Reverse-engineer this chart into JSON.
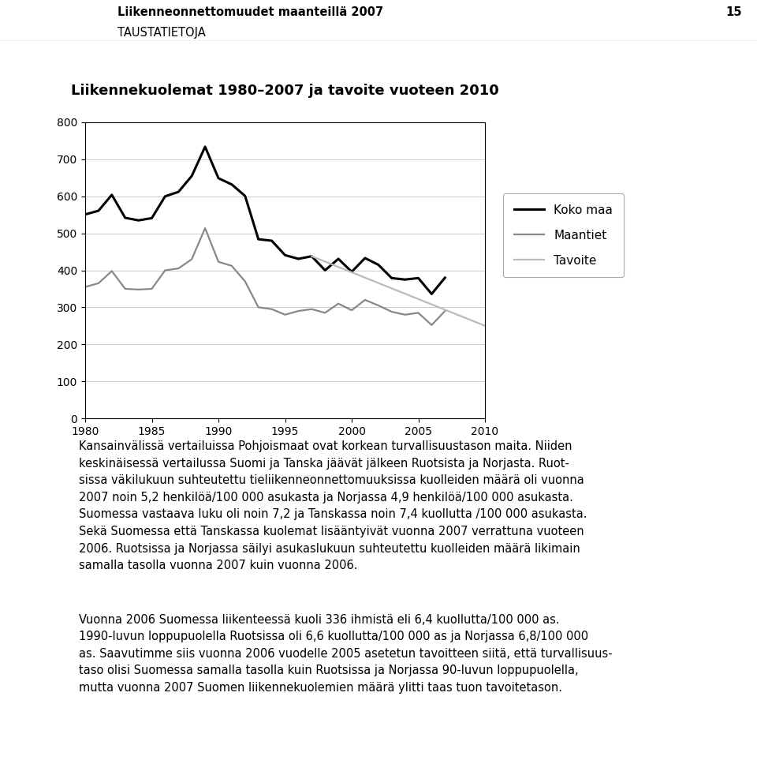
{
  "title": "Liikennekuolemat 1980–2007 ja tavoite vuoteen 2010",
  "header_title": "Liikenneonnettomuudet maanteillä 2007",
  "header_subtitle": "TAUSTATIETOJA",
  "page_number": "15",
  "koko_maa": {
    "years": [
      1980,
      1981,
      1982,
      1983,
      1984,
      1985,
      1986,
      1987,
      1988,
      1989,
      1990,
      1991,
      1992,
      1993,
      1994,
      1995,
      1996,
      1997,
      1998,
      1999,
      2000,
      2001,
      2002,
      2003,
      2004,
      2005,
      2006,
      2007
    ],
    "values": [
      551,
      561,
      604,
      542,
      535,
      541,
      600,
      612,
      655,
      734,
      649,
      632,
      601,
      484,
      480,
      441,
      431,
      438,
      400,
      431,
      396,
      433,
      415,
      379,
      375,
      379,
      336,
      380
    ],
    "color": "#000000",
    "linewidth": 2.2,
    "label": "Koko maa"
  },
  "maantiet": {
    "years": [
      1980,
      1981,
      1982,
      1983,
      1984,
      1985,
      1986,
      1987,
      1988,
      1989,
      1990,
      1991,
      1992,
      1993,
      1994,
      1995,
      1996,
      1997,
      1998,
      1999,
      2000,
      2001,
      2002,
      2003,
      2004,
      2005,
      2006,
      2007
    ],
    "values": [
      355,
      365,
      398,
      350,
      348,
      350,
      400,
      405,
      430,
      514,
      423,
      412,
      370,
      300,
      295,
      280,
      290,
      295,
      285,
      310,
      292,
      320,
      305,
      288,
      280,
      285,
      252,
      290
    ],
    "color": "#888888",
    "linewidth": 1.6,
    "label": "Maantiet"
  },
  "tavoite": {
    "years": [
      1997,
      2010
    ],
    "values": [
      438,
      250
    ],
    "color": "#bbbbbb",
    "linewidth": 1.6,
    "label": "Tavoite"
  },
  "ylim": [
    0,
    800
  ],
  "yticks": [
    0,
    100,
    200,
    300,
    400,
    500,
    600,
    700,
    800
  ],
  "xlim": [
    1980,
    2010
  ],
  "xticks": [
    1980,
    1985,
    1990,
    1995,
    2000,
    2005,
    2010
  ],
  "bg_color": "#ffffff",
  "text_color": "#000000",
  "grid_color": "#cccccc",
  "font_size_body": 10.5,
  "font_size_header": 10.5,
  "font_size_chart_title": 13,
  "font_size_axis": 10,
  "para1_lines": [
    "Kansainvälissä vertailuissa Pohjoismaat ovat korkean turvallisuustason maita. Niiden",
    "keskinäisessä vertailussa Suomi ja Tanska jäävät jälkeen Ruotsista ja Norjasta. Ruot-",
    "sissa väkilukuun suhteutettu tieliikenneonnettomuuksissa kuolleiden määrä oli vuonna",
    "2007 noin 5,2 henkilöä/100 000 asukasta ja Norjassa 4,9 henkilöä/100 000 asukasta.",
    "Suomessa vastaava luku oli noin 7,2 ja Tanskassa noin 7,4 kuollutta /100 000 asukasta.",
    "Sekä Suomessa että Tanskassa kuolemat lisääntyivät vuonna 2007 verrattuna vuoteen",
    "2006. Ruotsissa ja Norjassa säilyi asukaslukuun suhteutettu kuolleiden määrä likimain",
    "samalla tasolla vuonna 2007 kuin vuonna 2006."
  ],
  "para2_lines": [
    "Vuonna 2006 Suomessa liikenteessä kuoli 336 ihmistä eli 6,4 kuollutta/100 000 as.",
    "1990-luvun loppupuolella Ruotsissa oli 6,6 kuollutta/100 000 as ja Norjassa 6,8/100 000",
    "as. Saavutimme siis vuonna 2006 vuodelle 2005 asetetun tavoitteen siitä, että turvallisuus-",
    "taso olisi Suomessa samalla tasolla kuin Ruotsissa ja Norjassa 90-luvun loppupuolella,",
    "mutta vuonna 2007 Suomen liikennekuolemien määrä ylitti taas tuon tavoitetason."
  ]
}
